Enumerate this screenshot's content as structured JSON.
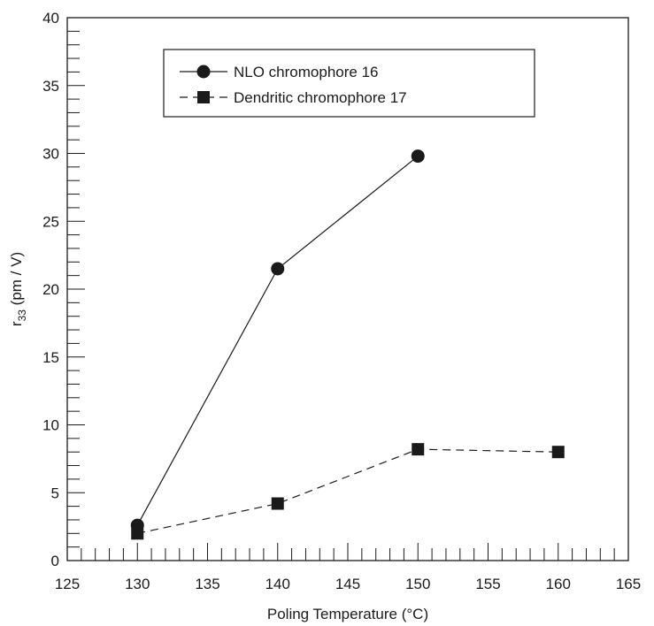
{
  "chart_data": {
    "type": "line",
    "xlabel": "Poling Temperature (°C)",
    "ylabel": {
      "base": "r",
      "sub": "33",
      "rest": " (pm / V)"
    },
    "xlim": [
      125,
      165
    ],
    "ylim": [
      0,
      40
    ],
    "x_major_ticks": [
      125,
      130,
      135,
      140,
      145,
      150,
      155,
      160,
      165
    ],
    "y_major_ticks": [
      0,
      5,
      10,
      15,
      20,
      25,
      30,
      35,
      40
    ],
    "x_minor_step": 1,
    "y_minor_step": 1,
    "grid": false,
    "legend_position": "top-center",
    "series": [
      {
        "name": "NLO chromophore 16",
        "marker": "circle",
        "line_style": "solid",
        "color": "#1a1a1a",
        "x": [
          130,
          140,
          150
        ],
        "y": [
          2.6,
          21.5,
          29.8
        ]
      },
      {
        "name": "Dendritic chromophore 17",
        "marker": "square",
        "line_style": "dashed",
        "color": "#1a1a1a",
        "x": [
          130,
          140,
          150,
          160
        ],
        "y": [
          2.0,
          4.2,
          8.2,
          8.0
        ]
      }
    ]
  }
}
